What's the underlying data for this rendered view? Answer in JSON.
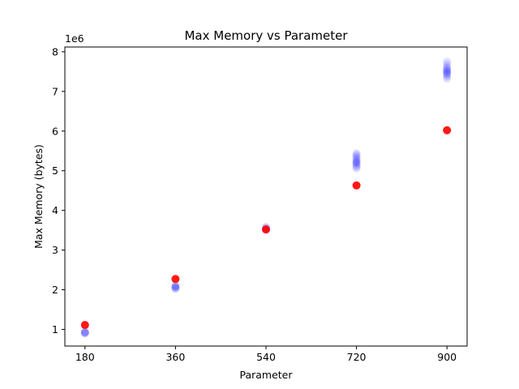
{
  "chart_data": {
    "type": "scatter",
    "title": "Max Memory vs Parameter",
    "xlabel": "Parameter",
    "ylabel": "Max Memory (bytes)",
    "y_offset_label": "1e6",
    "x_ticks": [
      180,
      360,
      540,
      720,
      900
    ],
    "y_ticks": [
      1,
      2,
      3,
      4,
      5,
      6,
      7,
      8
    ],
    "xlim": [
      140,
      940
    ],
    "ylim": [
      0.58,
      8.12
    ],
    "grid": false,
    "legend": "none",
    "series": [
      {
        "color": "#0000ff",
        "opacity": 0.12,
        "x": [
          180,
          180,
          180,
          180,
          180,
          360,
          360,
          360,
          360,
          360,
          360,
          540,
          540,
          540,
          540,
          540,
          720,
          720,
          720,
          720,
          720,
          720,
          720,
          720,
          720,
          720,
          720,
          720,
          900,
          900,
          900,
          900,
          900,
          900,
          900,
          900,
          900,
          900,
          900,
          900
        ],
        "y": [
          0.9,
          0.91,
          0.92,
          0.93,
          0.94,
          2.02,
          2.04,
          2.06,
          2.07,
          2.09,
          2.1,
          3.5,
          3.52,
          3.54,
          3.56,
          3.58,
          5.06,
          5.1,
          5.14,
          5.18,
          5.2,
          5.22,
          5.25,
          5.28,
          5.32,
          5.36,
          5.4,
          5.44,
          7.32,
          7.38,
          7.42,
          7.45,
          7.48,
          7.5,
          7.52,
          7.55,
          7.58,
          7.62,
          7.68,
          7.75
        ]
      },
      {
        "color": "#ff0000",
        "opacity": 0.9,
        "x": [
          180,
          360,
          540,
          720,
          900
        ],
        "y": [
          1.11,
          2.27,
          3.52,
          4.63,
          6.02
        ]
      }
    ]
  }
}
